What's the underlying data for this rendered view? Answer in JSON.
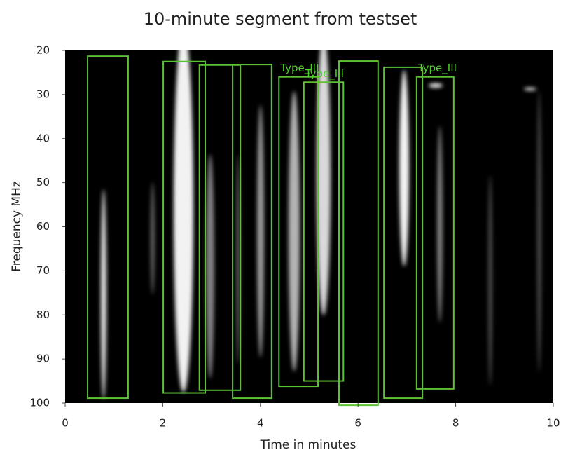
{
  "chart_data": {
    "type": "detection",
    "title": "10-minute segment from testset",
    "xlabel": "Time in minutes",
    "ylabel": "Frequency MHz",
    "xlim": [
      0,
      10
    ],
    "xticks": [
      0,
      2,
      4,
      6,
      8,
      10
    ],
    "ylim": [
      20,
      100
    ],
    "yticks": [
      20,
      30,
      40,
      50,
      60,
      70,
      80,
      90,
      100
    ],
    "y_inverted": true,
    "box_color": "#5cc234",
    "label_color": "#4fd02a",
    "background": "#000000",
    "boxes": [
      {
        "x": [
          0.46,
          1.29
        ],
        "y": [
          21.3,
          98.9
        ]
      },
      {
        "x": [
          2.01,
          2.87
        ],
        "y": [
          22.5,
          97.7
        ]
      },
      {
        "x": [
          2.75,
          3.59
        ],
        "y": [
          23.3,
          97.1
        ]
      },
      {
        "x": [
          3.43,
          4.23
        ],
        "y": [
          23.2,
          98.9
        ]
      },
      {
        "x": [
          4.38,
          5.18
        ],
        "y": [
          26.0,
          96.2
        ],
        "label": "Type_III"
      },
      {
        "x": [
          4.89,
          5.7
        ],
        "y": [
          27.2,
          95.0
        ],
        "label": "Type_III"
      },
      {
        "x": [
          5.61,
          6.41
        ],
        "y": [
          22.4,
          100.5
        ]
      },
      {
        "x": [
          6.53,
          7.32
        ],
        "y": [
          23.8,
          98.9
        ]
      },
      {
        "x": [
          7.2,
          7.96
        ],
        "y": [
          26.0,
          96.8
        ],
        "label": "Type_III"
      }
    ]
  }
}
